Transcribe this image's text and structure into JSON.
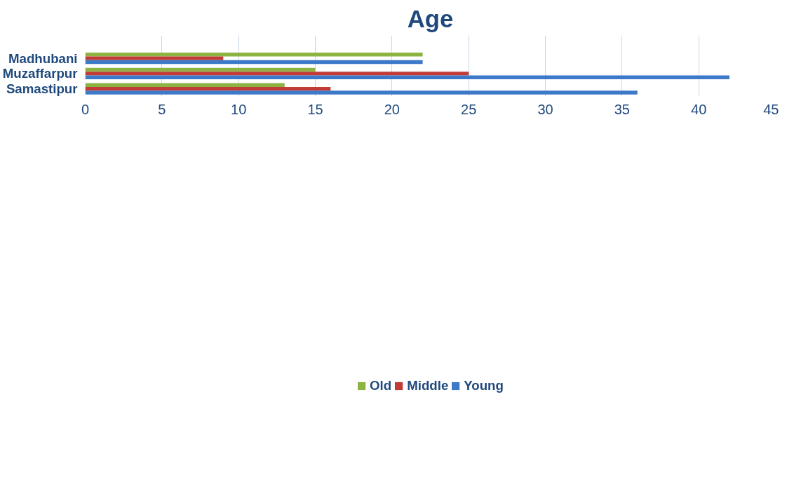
{
  "chart_data": {
    "type": "bar",
    "orientation": "horizontal",
    "title": "Age",
    "categories": [
      "Madhubani",
      "Muzaffarpur",
      "Samastipur"
    ],
    "series": [
      {
        "name": "Old",
        "color": "#8db443",
        "values": [
          22,
          15,
          13
        ]
      },
      {
        "name": "Middle",
        "color": "#c23b37",
        "values": [
          9,
          25,
          16
        ]
      },
      {
        "name": "Young",
        "color": "#3c79c8",
        "values": [
          22,
          42,
          36
        ]
      }
    ],
    "xlim": [
      0,
      45
    ],
    "xticks": [
      0,
      5,
      10,
      15,
      20,
      25,
      30,
      35,
      40,
      45
    ],
    "grid": "x",
    "legend": "bottom"
  }
}
